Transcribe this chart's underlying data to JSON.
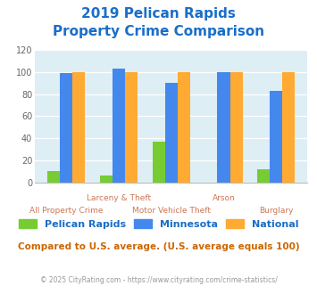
{
  "title_line1": "2019 Pelican Rapids",
  "title_line2": "Property Crime Comparison",
  "title_color": "#1a6ec8",
  "pelican_rapids": [
    10,
    6,
    37,
    0,
    12
  ],
  "minnesota": [
    99,
    103,
    90,
    100,
    83
  ],
  "national": [
    100,
    100,
    100,
    100,
    100
  ],
  "bar_width": 0.24,
  "pelican_color": "#77cc33",
  "minnesota_color": "#4488ee",
  "national_color": "#ffaa33",
  "bg_color": "#ddeef5",
  "ylim": [
    0,
    120
  ],
  "yticks": [
    0,
    20,
    40,
    60,
    80,
    100,
    120
  ],
  "legend_labels": [
    "Pelican Rapids",
    "Minnesota",
    "National"
  ],
  "note": "Compared to U.S. average. (U.S. average equals 100)",
  "note_color": "#cc6600",
  "footer": "© 2025 CityRating.com - https://www.cityrating.com/crime-statistics/",
  "footer_color": "#999999",
  "xtick_labels_top": [
    "",
    "Larceny & Theft",
    "",
    "Arson",
    ""
  ],
  "xtick_labels_bot": [
    "All Property Crime",
    "",
    "Motor Vehicle Theft",
    "",
    "Burglary"
  ],
  "num_groups": 5
}
